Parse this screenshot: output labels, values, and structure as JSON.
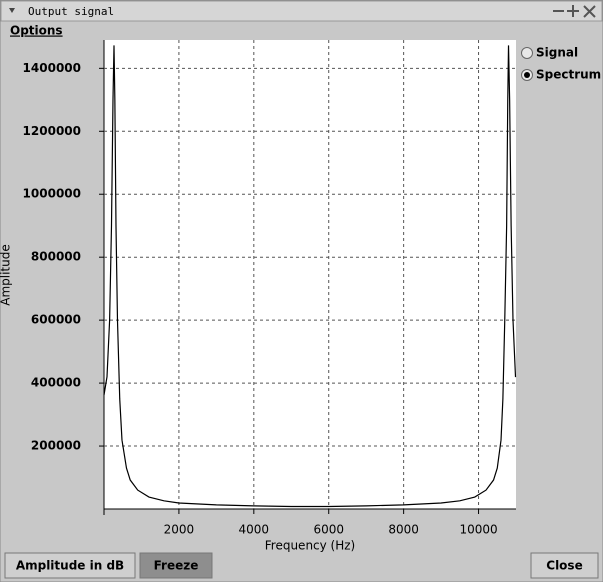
{
  "window": {
    "title": "Output signal"
  },
  "menu": [
    "Options"
  ],
  "chart_data": {
    "type": "line",
    "xlabel": "Frequency (Hz)",
    "ylabel": "Amplitude",
    "x": [
      0,
      80,
      150,
      200,
      240,
      267,
      290,
      320,
      360,
      420,
      480,
      600,
      700,
      900,
      1200,
      1600,
      2000,
      3000,
      4000,
      5000,
      5500,
      6000,
      7000,
      8000,
      9000,
      9500,
      9900,
      10200,
      10400,
      10500,
      10600,
      10650,
      10700,
      10750,
      10780,
      10800,
      10830,
      10870,
      10920,
      10987
    ],
    "series": [
      {
        "color": "#000000",
        "values": [
          362000,
          420000,
          600000,
          900000,
          1300000,
          1473000,
          1300000,
          900000,
          600000,
          350000,
          219000,
          130000,
          92000,
          60000,
          38000,
          26000,
          19000,
          13000,
          10000,
          8000,
          8000,
          8000,
          10000,
          13000,
          19000,
          26000,
          38000,
          60000,
          92000,
          130000,
          219000,
          350000,
          600000,
          900000,
          1300000,
          1473000,
          1300000,
          900000,
          600000,
          419000
        ]
      }
    ],
    "xlim": [
      0,
      11000
    ],
    "xticks": [
      2000,
      4000,
      6000,
      8000,
      10000
    ],
    "ylim": [
      0,
      1490000
    ],
    "yticks": [
      200000,
      400000,
      600000,
      800000,
      1000000,
      1200000,
      1400000
    ],
    "grid": true
  },
  "view_options": [
    {
      "label": "Signal",
      "selected": false
    },
    {
      "label": "Spectrum",
      "selected": true
    }
  ],
  "buttons": [
    {
      "label": "Amplitude in dB",
      "pressed": false
    },
    {
      "label": "Freeze",
      "pressed": true
    },
    {
      "label": "Close",
      "pressed": false
    }
  ]
}
